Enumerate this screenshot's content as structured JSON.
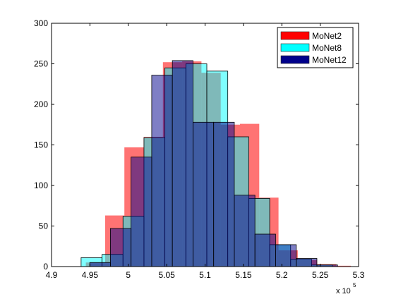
{
  "chart_data": {
    "type": "bar",
    "chart_subtype": "overlapping histogram",
    "xlim": [
      4.9,
      5.3
    ],
    "ylim": [
      0,
      300
    ],
    "x_scale_multiplier": "x 10",
    "x_scale_exponent": "5",
    "xticks": [
      "4.9",
      "4.95",
      "5",
      "5.05",
      "5.1",
      "5.15",
      "5.2",
      "5.25",
      "5.3"
    ],
    "yticks": [
      "0",
      "50",
      "100",
      "150",
      "200",
      "250",
      "300"
    ],
    "grid": false,
    "legend_position": "top-right",
    "series": [
      {
        "name": "MoNet2",
        "color": "#ff0000",
        "opacity": 0.55,
        "bins": [
          {
            "x0": 4.9447,
            "x1": 4.9698,
            "value": 5
          },
          {
            "x0": 4.9698,
            "x1": 4.9949,
            "value": 63
          },
          {
            "x0": 4.9949,
            "x1": 5.02,
            "value": 147
          },
          {
            "x0": 5.02,
            "x1": 5.0451,
            "value": 160
          },
          {
            "x0": 5.0451,
            "x1": 5.0702,
            "value": 252
          },
          {
            "x0": 5.0702,
            "x1": 5.0953,
            "value": 253
          },
          {
            "x0": 5.0953,
            "x1": 5.1204,
            "value": 239
          },
          {
            "x0": 5.1204,
            "x1": 5.1455,
            "value": 175
          },
          {
            "x0": 5.1455,
            "x1": 5.1706,
            "value": 176
          },
          {
            "x0": 5.1706,
            "x1": 5.1957,
            "value": 85
          },
          {
            "x0": 5.1957,
            "x1": 5.2208,
            "value": 20
          },
          {
            "x0": 5.2208,
            "x1": 5.2459,
            "value": 8
          },
          {
            "x0": 5.2459,
            "x1": 5.271,
            "value": 3
          },
          {
            "x0": 5.271,
            "x1": 5.29,
            "value": 1
          }
        ]
      },
      {
        "name": "MoNet8",
        "color": "#00ffff",
        "opacity": 0.5,
        "bins": [
          {
            "x0": 4.9385,
            "x1": 4.9658,
            "value": 11
          },
          {
            "x0": 4.9658,
            "x1": 4.9931,
            "value": 15
          },
          {
            "x0": 4.9931,
            "x1": 5.0204,
            "value": 62
          },
          {
            "x0": 5.0204,
            "x1": 5.0477,
            "value": 159
          },
          {
            "x0": 5.0477,
            "x1": 5.075,
            "value": 245
          },
          {
            "x0": 5.075,
            "x1": 5.1023,
            "value": 250
          },
          {
            "x0": 5.1023,
            "x1": 5.1296,
            "value": 241
          },
          {
            "x0": 5.1296,
            "x1": 5.1569,
            "value": 160
          },
          {
            "x0": 5.1569,
            "x1": 5.1842,
            "value": 84
          },
          {
            "x0": 5.1842,
            "x1": 5.2115,
            "value": 27
          },
          {
            "x0": 5.2115,
            "x1": 5.2388,
            "value": 9
          },
          {
            "x0": 5.2388,
            "x1": 5.2661,
            "value": 2
          }
        ]
      },
      {
        "name": "MoNet12",
        "color": "#00008b",
        "opacity": 0.5,
        "bins": [
          {
            "x0": 4.9498,
            "x1": 4.9767,
            "value": 5
          },
          {
            "x0": 4.9767,
            "x1": 5.0036,
            "value": 47
          },
          {
            "x0": 5.0036,
            "x1": 5.0305,
            "value": 135
          },
          {
            "x0": 5.0305,
            "x1": 5.0574,
            "value": 236
          },
          {
            "x0": 5.0574,
            "x1": 5.0843,
            "value": 254
          },
          {
            "x0": 5.0843,
            "x1": 5.1112,
            "value": 178
          },
          {
            "x0": 5.1112,
            "x1": 5.1381,
            "value": 178
          },
          {
            "x0": 5.1381,
            "x1": 5.165,
            "value": 88
          },
          {
            "x0": 5.165,
            "x1": 5.1919,
            "value": 40
          },
          {
            "x0": 5.1919,
            "x1": 5.2188,
            "value": 27
          },
          {
            "x0": 5.2188,
            "x1": 5.2457,
            "value": 10
          },
          {
            "x0": 5.2457,
            "x1": 5.2726,
            "value": 2
          }
        ]
      }
    ]
  }
}
